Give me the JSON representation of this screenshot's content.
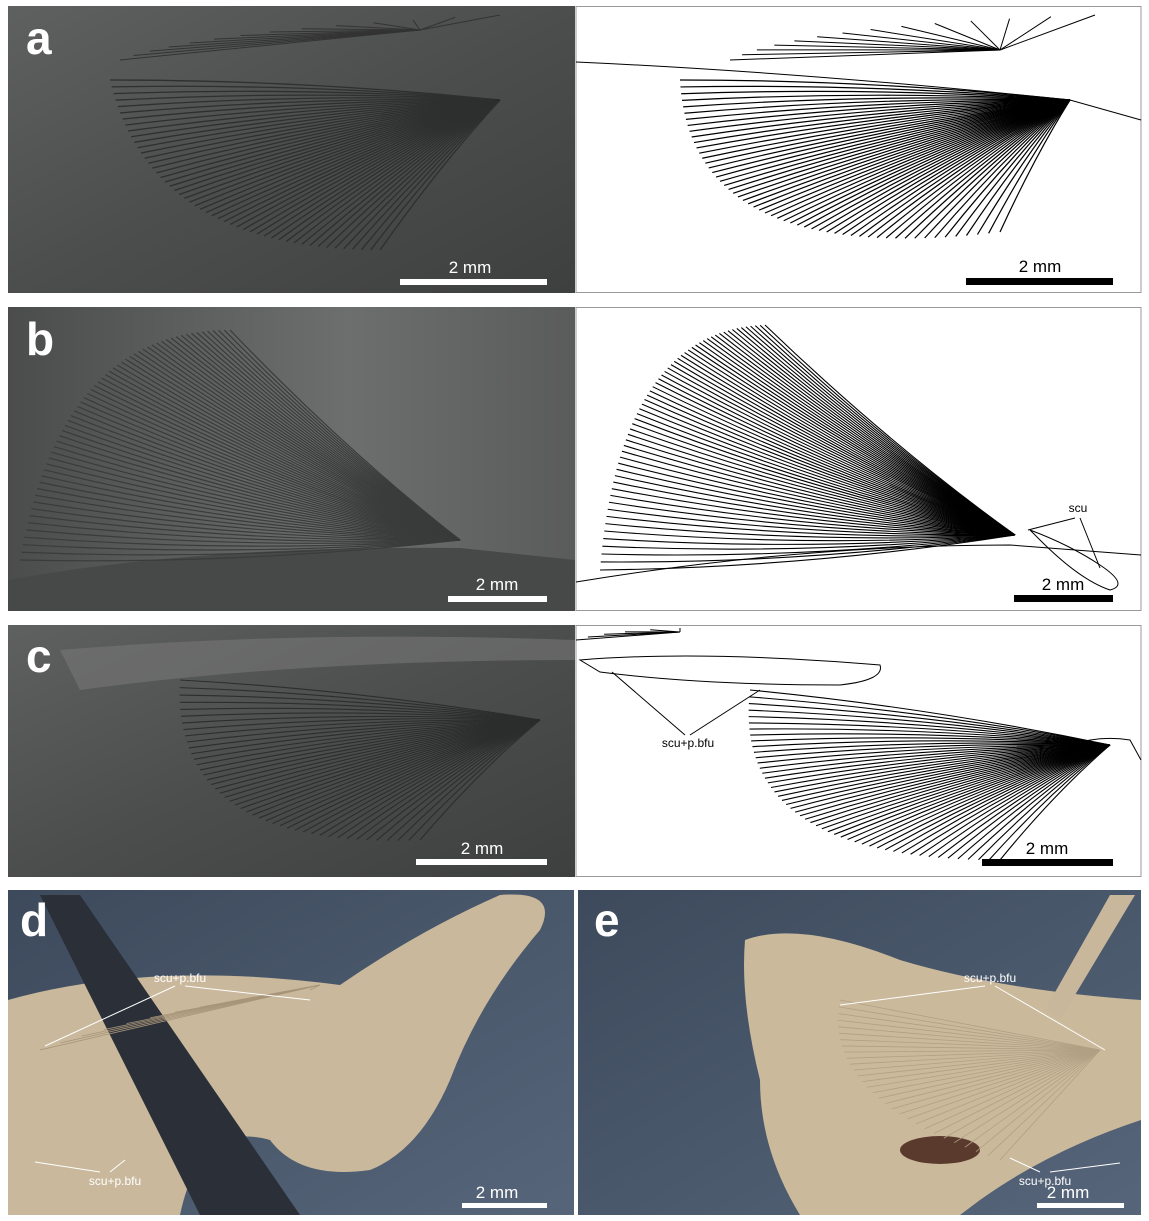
{
  "panels": [
    {
      "label": "a",
      "photo_scale": "2 mm",
      "drawing_scale": "2 mm"
    },
    {
      "label": "b",
      "photo_scale": "2 mm",
      "drawing_scale": "2 mm",
      "drawing_annotations": [
        "scu"
      ]
    },
    {
      "label": "c",
      "photo_scale": "2 mm",
      "drawing_scale": "2 mm",
      "drawing_annotations": [
        "scu+p.bfu"
      ]
    },
    {
      "label": "d",
      "photo_scale": "2 mm",
      "photo_annotations": [
        "scu+p.bfu",
        "scu+p.bfu"
      ]
    },
    {
      "label": "e",
      "photo_scale": "2 mm",
      "photo_annotations": [
        "scu+p.bfu",
        "scu+p.bfu"
      ]
    }
  ]
}
